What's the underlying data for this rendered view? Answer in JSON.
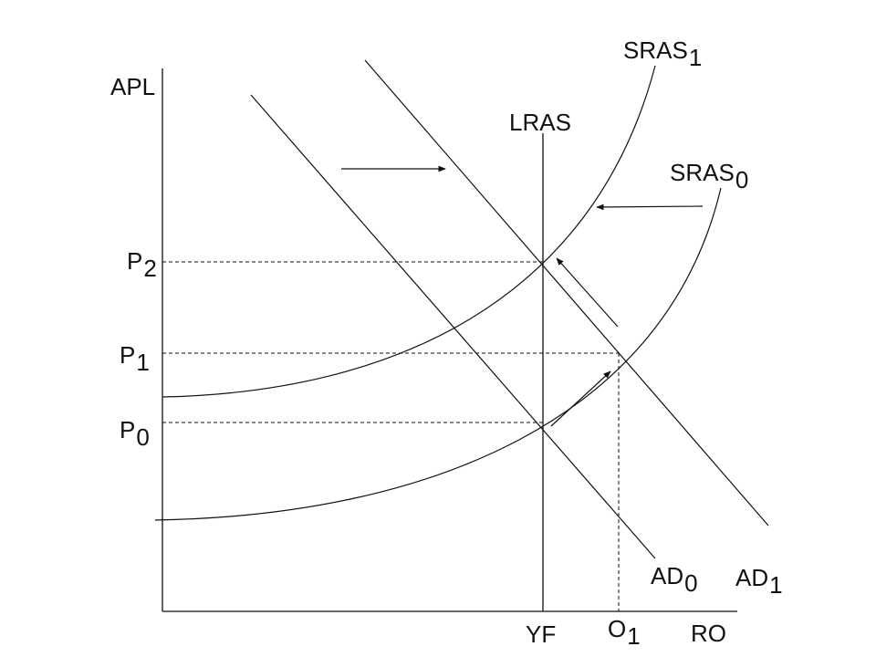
{
  "labels": {
    "y_axis": "APL",
    "x_axis": "RO",
    "lras": "LRAS",
    "yf": "YF",
    "sras1": {
      "base": "SRAS",
      "sub": "1"
    },
    "sras0": {
      "base": "SRAS",
      "sub": "0"
    },
    "ad0": {
      "base": "AD",
      "sub": "0"
    },
    "ad1": {
      "base": "AD",
      "sub": "1"
    },
    "p2": {
      "base": "P",
      "sub": "2"
    },
    "p1": {
      "base": "P",
      "sub": "1"
    },
    "p0": {
      "base": "P",
      "sub": "0"
    },
    "o1": {
      "base": "O",
      "sub": "1"
    }
  },
  "colors": {
    "line": "#111111",
    "background": "#ffffff"
  }
}
